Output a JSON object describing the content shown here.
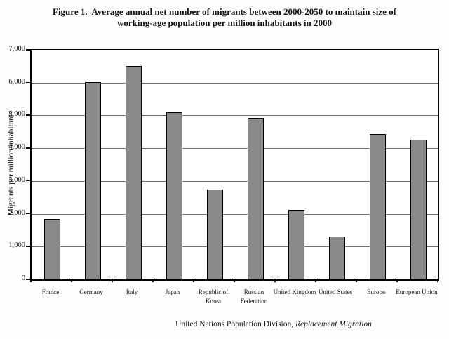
{
  "figure": {
    "title_line1": "Figure 1.  Average annual net number of migrants between 2000-2050 to maintain size of",
    "title_line2": "working-age population per million inhabitants in 2000",
    "source_normal": "United Nations Population Division, ",
    "source_italic": "Replacement Migration"
  },
  "chart_data": {
    "type": "bar",
    "title": "Figure 1. Average annual net number of migrants between 2000-2050 to maintain size of working-age population per million inhabitants in 2000",
    "categories": [
      "France",
      "Germany",
      "Italy",
      "Japan",
      "Republic of Korea",
      "Russian Federation",
      "United Kingdom",
      "United States",
      "Europe",
      "European Union"
    ],
    "values": [
      1850,
      6010,
      6500,
      5100,
      2730,
      4930,
      2130,
      1300,
      4440,
      4260
    ],
    "tick_label_lines": [
      [
        "France"
      ],
      [
        "Germany"
      ],
      [
        "Italy"
      ],
      [
        "Japan"
      ],
      [
        "Republic of",
        "Korea"
      ],
      [
        "Russian",
        "Federation"
      ],
      [
        "United Kingdom"
      ],
      [
        "United States"
      ],
      [
        "Europe"
      ],
      [
        "European Union"
      ]
    ],
    "xlabel": "",
    "ylabel": "Migrants per million inhabitants",
    "ylim": [
      0,
      7000
    ],
    "ytick_step": 1000,
    "ytick_labels": [
      "0",
      "1,000",
      "2,000",
      "3,000",
      "4,000",
      "5,000",
      "6,000",
      "7,000"
    ],
    "grid": true,
    "legend": "none",
    "bar_color": "#8a8a8a",
    "bar_border_color": "#000000",
    "source": "United Nations Population Division, Replacement Migration"
  }
}
